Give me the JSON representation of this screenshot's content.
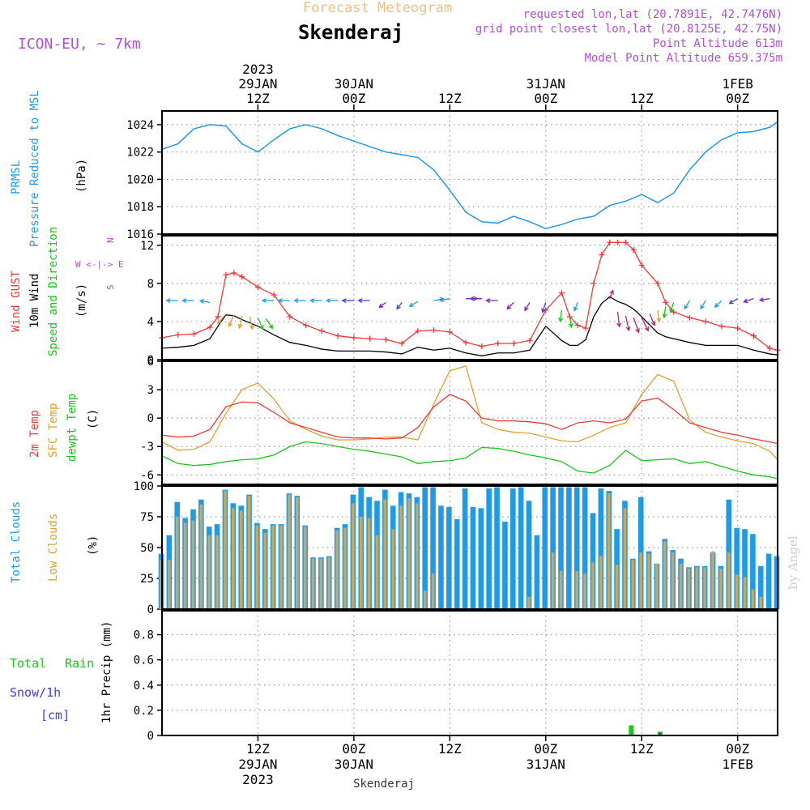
{
  "header": {
    "super_title": "Forecast Meteogram",
    "location": "Skenderaj",
    "model": "ICON-EU, ~ 7km",
    "requested": "requested lon,lat (20.7891E, 42.7476N)",
    "grid_point": "grid point closest lon,lat (20.8125E, 42.75N)",
    "point_altitude": "Point Altitude 613m",
    "model_altitude": "Model Point Altitude 659.375m"
  },
  "footer": {
    "location": "Skenderaj",
    "credit": "by Angel"
  },
  "time_axis": {
    "top_ticks": [
      {
        "t": 12,
        "lines": [
          "2023",
          "29JAN",
          "12Z"
        ]
      },
      {
        "t": 24,
        "lines": [
          "30JAN",
          "00Z"
        ]
      },
      {
        "t": 36,
        "lines": [
          "12Z"
        ]
      },
      {
        "t": 48,
        "lines": [
          "31JAN",
          "00Z"
        ]
      },
      {
        "t": 60,
        "lines": [
          "12Z"
        ]
      },
      {
        "t": 72,
        "lines": [
          "1FEB",
          "00Z"
        ]
      }
    ],
    "bottom_ticks": [
      {
        "t": 12,
        "lines": [
          "12Z",
          "29JAN",
          "2023"
        ]
      },
      {
        "t": 24,
        "lines": [
          "00Z",
          "30JAN"
        ]
      },
      {
        "t": 36,
        "lines": [
          "12Z"
        ]
      },
      {
        "t": 48,
        "lines": [
          "00Z",
          "31JAN"
        ]
      },
      {
        "t": 60,
        "lines": [
          "12Z"
        ]
      },
      {
        "t": 72,
        "lines": [
          "00Z",
          "1FEB"
        ]
      }
    ]
  },
  "panels": {
    "pressure": {
      "labels": [
        "PRMSL",
        "Pressure Reduced to MSL",
        "(hPa)"
      ]
    },
    "wind": {
      "labels": [
        "Wind GUST",
        "10m Wind",
        "Speed and Direction",
        "(m/s)"
      ],
      "compass": [
        "N",
        "W <-|-> E",
        "S"
      ]
    },
    "temp": {
      "labels": [
        "2m Temp",
        "SFC Temp",
        "dewpt Temp",
        "(C)"
      ]
    },
    "clouds": {
      "labels": [
        "Total Clouds",
        "Low Clouds",
        "(%)"
      ]
    },
    "precip": {
      "labels": [
        "Total",
        "Rain",
        "Snow/1h",
        "[cm]",
        "1hr Precip (mm)"
      ]
    }
  },
  "colors": {
    "pressure": "#1e9be6",
    "gust": "#ee3b3b",
    "wind": "#000000",
    "t2m": "#ee3b3b",
    "sfc": "#e0a030",
    "dewpt": "#19c519",
    "total_cloud": "#1e9be6",
    "low_cloud": "#c8a860",
    "rain": "#19c519",
    "snow": "#4040e0",
    "title_orange": "#f0c080",
    "meta_purple": "#b050d0"
  },
  "chart_data": [
    {
      "type": "line",
      "title": "PRMSL Pressure Reduced to MSL",
      "ylabel": "(hPa)",
      "ylim": [
        1016,
        1025
      ],
      "yticks": [
        1016,
        1018,
        1020,
        1022,
        1024
      ],
      "x": [
        0,
        2,
        4,
        6,
        8,
        10,
        12,
        14,
        16,
        18,
        20,
        22,
        24,
        26,
        28,
        30,
        32,
        34,
        36,
        38,
        40,
        42,
        44,
        46,
        48,
        50,
        52,
        54,
        56,
        58,
        60,
        62,
        64,
        66,
        68,
        70,
        72,
        74,
        76,
        77
      ],
      "values": [
        1022.2,
        1022.6,
        1023.7,
        1024.0,
        1023.9,
        1022.6,
        1022.0,
        1022.9,
        1023.7,
        1024.0,
        1023.7,
        1023.2,
        1022.8,
        1022.4,
        1022.0,
        1021.8,
        1021.6,
        1020.7,
        1019.2,
        1017.6,
        1016.9,
        1016.8,
        1017.3,
        1016.9,
        1016.4,
        1016.7,
        1017.1,
        1017.3,
        1018.1,
        1018.4,
        1018.9,
        1018.3,
        1019.0,
        1020.7,
        1022.0,
        1022.9,
        1023.4,
        1023.5,
        1023.8,
        1024.2
      ]
    },
    {
      "type": "line",
      "title": "Wind GUST / 10m Wind Speed and Direction",
      "ylabel": "(m/s)",
      "ylim": [
        0,
        13
      ],
      "yticks": [
        0,
        4,
        8,
        12
      ],
      "x": [
        0,
        2,
        4,
        6,
        7,
        8,
        9,
        10,
        12,
        14,
        16,
        18,
        20,
        22,
        24,
        26,
        28,
        30,
        32,
        34,
        36,
        38,
        40,
        42,
        44,
        46,
        48,
        50,
        51,
        52,
        53,
        54,
        55,
        56,
        57,
        58,
        59,
        60,
        62,
        63,
        64,
        66,
        68,
        70,
        72,
        74,
        76,
        77
      ],
      "series": [
        {
          "name": "Wind GUST",
          "values": [
            2.3,
            2.6,
            2.7,
            3.4,
            4.5,
            8.9,
            9.1,
            8.7,
            7.6,
            6.8,
            4.5,
            3.6,
            3.0,
            2.5,
            2.3,
            2.2,
            2.1,
            1.7,
            3.0,
            3.1,
            2.9,
            1.8,
            1.4,
            1.7,
            1.7,
            2.0,
            5.2,
            7.0,
            4.5,
            3.6,
            3.3,
            8.0,
            11.0,
            12.3,
            12.3,
            12.3,
            11.5,
            9.9,
            8.0,
            6.0,
            5.0,
            4.4,
            4.0,
            3.5,
            3.3,
            2.5,
            1.2,
            1.0
          ]
        },
        {
          "name": "10m Wind",
          "values": [
            1.2,
            1.3,
            1.5,
            2.2,
            3.5,
            4.7,
            4.6,
            4.2,
            3.5,
            2.6,
            1.8,
            1.5,
            1.1,
            0.9,
            0.9,
            0.9,
            0.8,
            0.6,
            1.3,
            1.0,
            1.2,
            0.7,
            0.4,
            0.7,
            0.7,
            1.0,
            3.5,
            2.0,
            1.5,
            1.5,
            2.1,
            4.5,
            5.9,
            6.6,
            6.1,
            5.8,
            5.3,
            4.5,
            2.8,
            2.4,
            2.2,
            1.8,
            1.5,
            1.5,
            1.5,
            1.0,
            0.6,
            0.5
          ]
        }
      ]
    },
    {
      "type": "line",
      "title": "2m Temp / SFC Temp / dewpt Temp",
      "ylabel": "(C)",
      "ylim": [
        -7,
        6
      ],
      "yticks": [
        -6,
        -3,
        0,
        3,
        6
      ],
      "x": [
        0,
        2,
        4,
        6,
        8,
        10,
        12,
        14,
        16,
        18,
        20,
        22,
        24,
        26,
        28,
        30,
        32,
        34,
        36,
        38,
        40,
        42,
        44,
        46,
        48,
        50,
        52,
        54,
        56,
        58,
        60,
        62,
        64,
        66,
        68,
        70,
        72,
        74,
        76,
        77
      ],
      "series": [
        {
          "name": "2m Temp",
          "values": [
            -1.8,
            -2.0,
            -1.9,
            -1.2,
            1.2,
            1.7,
            1.6,
            0.6,
            -0.5,
            -1.0,
            -1.5,
            -2.0,
            -2.1,
            -2.1,
            -2.2,
            -2.1,
            -1.0,
            1.2,
            2.5,
            1.8,
            0.0,
            -0.3,
            -0.3,
            -0.4,
            -0.6,
            -1.2,
            -0.5,
            -0.3,
            -0.5,
            -0.1,
            1.8,
            2.1,
            0.9,
            -0.5,
            -1.0,
            -1.5,
            -1.8,
            -2.2,
            -2.5,
            -2.7
          ]
        },
        {
          "name": "SFC Temp",
          "values": [
            -2.5,
            -3.4,
            -3.3,
            -2.5,
            0.5,
            3.0,
            3.7,
            2.0,
            -0.3,
            -1.2,
            -1.9,
            -2.3,
            -2.3,
            -2.2,
            -2.0,
            -2.0,
            -2.3,
            1.5,
            5.0,
            5.5,
            -0.5,
            -1.2,
            -1.5,
            -1.6,
            -2.0,
            -2.4,
            -2.5,
            -1.8,
            -1.0,
            -0.5,
            2.5,
            4.6,
            3.9,
            -0.2,
            -1.5,
            -2.0,
            -2.4,
            -2.7,
            -3.5,
            -4.4
          ]
        },
        {
          "name": "dewpt Temp",
          "values": [
            -4.0,
            -4.8,
            -5.0,
            -4.9,
            -4.6,
            -4.4,
            -4.3,
            -3.9,
            -3.0,
            -2.5,
            -2.7,
            -3.0,
            -3.3,
            -3.5,
            -3.8,
            -4.1,
            -4.8,
            -4.6,
            -4.5,
            -4.2,
            -3.1,
            -3.2,
            -3.5,
            -3.9,
            -4.2,
            -4.6,
            -5.6,
            -5.8,
            -5.0,
            -3.4,
            -4.5,
            -4.4,
            -4.3,
            -4.8,
            -4.6,
            -5.1,
            -5.6,
            -6.0,
            -6.2,
            -6.4
          ]
        }
      ]
    },
    {
      "type": "bar",
      "title": "Total Clouds / Low Clouds",
      "ylabel": "(%)",
      "ylim": [
        0,
        100
      ],
      "yticks": [
        0,
        25,
        50,
        75,
        100
      ],
      "x": [
        0,
        1,
        2,
        3,
        4,
        5,
        6,
        7,
        8,
        9,
        10,
        11,
        12,
        13,
        14,
        15,
        16,
        17,
        18,
        19,
        20,
        21,
        22,
        23,
        24,
        25,
        26,
        27,
        28,
        29,
        30,
        31,
        32,
        33,
        34,
        35,
        36,
        37,
        38,
        39,
        40,
        41,
        42,
        43,
        44,
        45,
        46,
        47,
        48,
        49,
        50,
        51,
        52,
        53,
        54,
        55,
        56,
        57,
        58,
        59,
        60,
        61,
        62,
        63,
        64,
        65,
        66,
        67,
        68,
        69,
        70,
        71,
        72,
        73,
        74,
        75,
        76,
        77
      ],
      "series": [
        {
          "name": "Total Clouds",
          "values": [
            45,
            60,
            87,
            74,
            81,
            89,
            67,
            69,
            97,
            86,
            84,
            93,
            70,
            65,
            69,
            69,
            94,
            92,
            68,
            42,
            42,
            43,
            66,
            69,
            93,
            99,
            91,
            88,
            97,
            84,
            95,
            94,
            91,
            99,
            99,
            84,
            83,
            73,
            98,
            83,
            82,
            98,
            99,
            71,
            98,
            99,
            88,
            60,
            99,
            99,
            99,
            99,
            99,
            99,
            78,
            98,
            96,
            65,
            88,
            41,
            91,
            47,
            37,
            57,
            48,
            41,
            34,
            35,
            35,
            46,
            35,
            89,
            66,
            65,
            61,
            35,
            45,
            43
          ]
        },
        {
          "name": "Low Clouds",
          "values": [
            40,
            40,
            75,
            70,
            72,
            85,
            60,
            60,
            96,
            82,
            80,
            92,
            68,
            62,
            68,
            68,
            93,
            91,
            67,
            41,
            41,
            42,
            64,
            66,
            86,
            75,
            74,
            60,
            89,
            65,
            84,
            90,
            86,
            15,
            29,
            0,
            0,
            0,
            0,
            0,
            0,
            0,
            0,
            0,
            0,
            0,
            10,
            0,
            0,
            46,
            31,
            0,
            31,
            29,
            38,
            43,
            94,
            36,
            82,
            40,
            46,
            45,
            37,
            55,
            46,
            37,
            33,
            34,
            34,
            47,
            33,
            46,
            28,
            26,
            16,
            10,
            0,
            0
          ]
        }
      ]
    },
    {
      "type": "bar",
      "title": "1hr Precip (mm)",
      "ylabel": "1hr Precip (mm)",
      "ylim": [
        0,
        0.99
      ],
      "yticks": [
        0,
        0.2,
        0.4,
        0.6,
        0.8
      ],
      "x": [
        58.7,
        62.3
      ],
      "series": [
        {
          "name": "Total Rain",
          "values": [
            0.08,
            0.03
          ]
        },
        {
          "name": "Snow/1h",
          "values": [
            0,
            0.02
          ]
        }
      ]
    }
  ]
}
